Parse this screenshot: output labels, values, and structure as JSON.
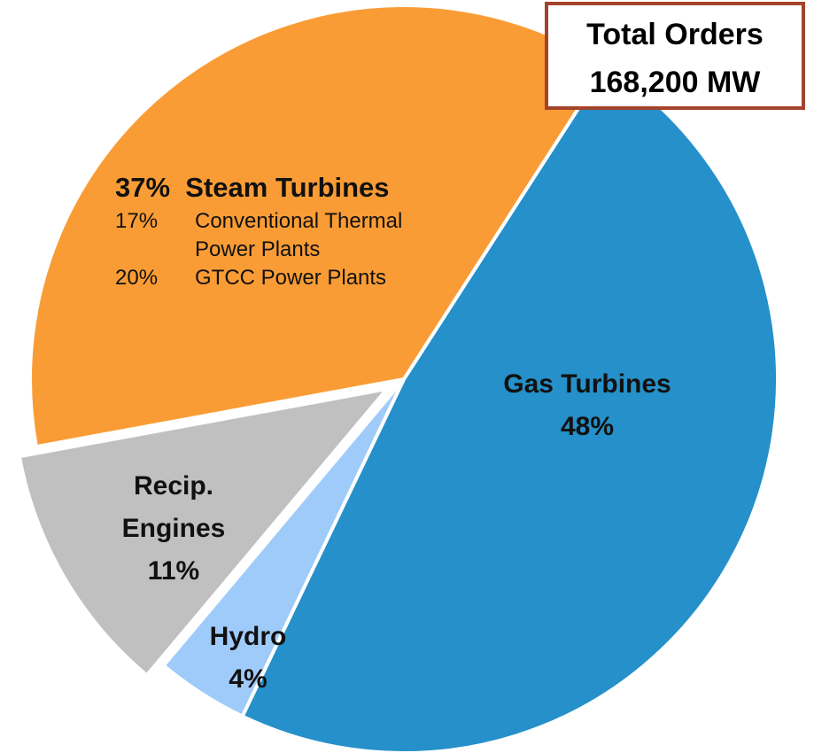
{
  "chart_data": {
    "type": "pie",
    "categories": [
      "Gas Turbines",
      "Hydro",
      "Recip. Engines",
      "Steam Turbines"
    ],
    "values": [
      48,
      4,
      11,
      37
    ],
    "value_labels": [
      "48%",
      "4%",
      "11%",
      "37%"
    ],
    "colors": [
      "#2590c9",
      "#9fcbfa",
      "#c0c0c0",
      "#fa9c35"
    ],
    "exploded": [
      false,
      false,
      true,
      false
    ],
    "breakdown": [
      {
        "value": 17,
        "value_label": "17%",
        "name": "Conventional Thermal Power Plants"
      },
      {
        "value": 20,
        "value_label": "20%",
        "name": "GTCC Power Plants"
      }
    ],
    "total": {
      "title": "Total Orders",
      "value_label": "168,200 MW"
    }
  }
}
